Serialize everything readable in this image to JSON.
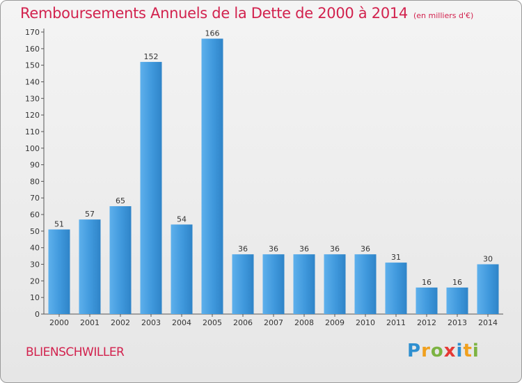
{
  "chart_data": {
    "type": "bar",
    "title": "Remboursements Annuels de la Dette de 2000 à 2014",
    "subtitle": "(en milliers d'€)",
    "categories": [
      "2000",
      "2001",
      "2002",
      "2003",
      "2004",
      "2005",
      "2006",
      "2007",
      "2008",
      "2009",
      "2010",
      "2011",
      "2012",
      "2013",
      "2014"
    ],
    "values": [
      51,
      57,
      65,
      152,
      54,
      166,
      36,
      36,
      36,
      36,
      36,
      31,
      16,
      16,
      30
    ],
    "xlabel": "",
    "ylabel": "",
    "ylim": [
      0,
      170
    ],
    "yticks": [
      0,
      10,
      20,
      30,
      40,
      50,
      60,
      70,
      80,
      90,
      100,
      110,
      120,
      130,
      140,
      150,
      160,
      170
    ],
    "grid": false,
    "legend": "none",
    "bar_color": "#3f98dc"
  },
  "footer": {
    "commune": "BLIENSCHWILLER",
    "logo_letters": [
      {
        "ch": "P",
        "color": "#2e8fd0"
      },
      {
        "ch": "r",
        "color": "#f0a01e"
      },
      {
        "ch": "o",
        "color": "#7cb342"
      },
      {
        "ch": "x",
        "color": "#e53935"
      },
      {
        "ch": "i",
        "color": "#2e8fd0"
      },
      {
        "ch": "t",
        "color": "#f0a01e"
      },
      {
        "ch": "i",
        "color": "#7cb342"
      }
    ]
  }
}
